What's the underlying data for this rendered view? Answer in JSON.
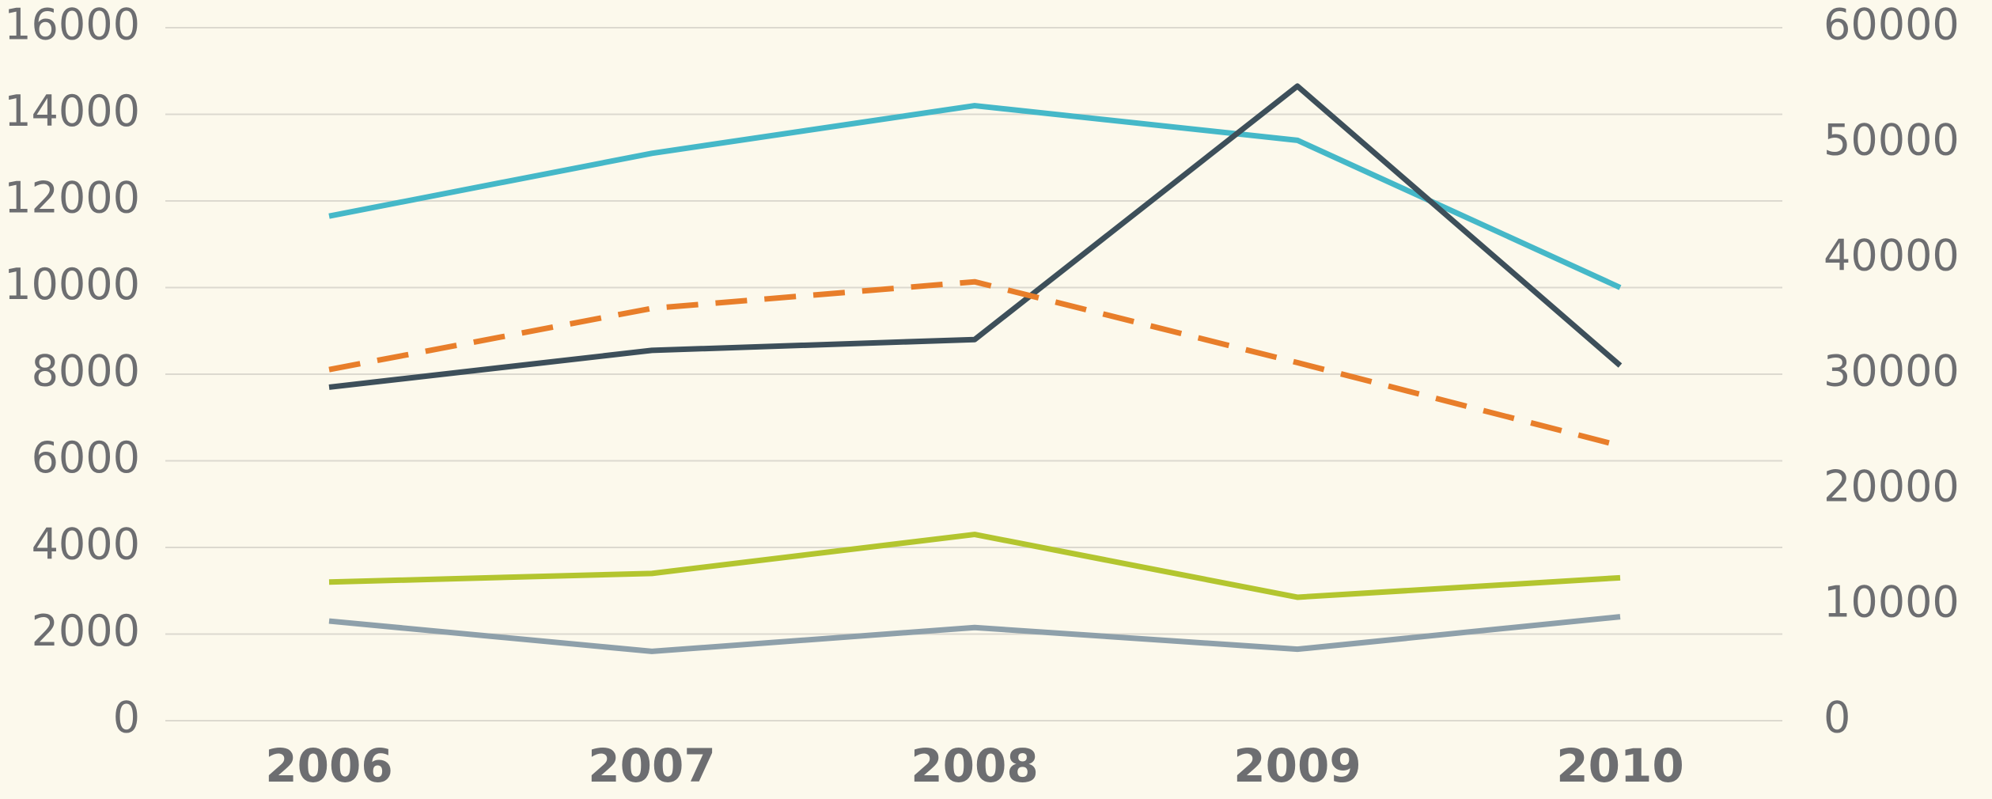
{
  "chart_data": {
    "type": "line",
    "categories": [
      "2006",
      "2007",
      "2008",
      "2009",
      "2010"
    ],
    "series": [
      {
        "color": "#45b8c8",
        "values": [
          11650,
          13100,
          14200,
          13400,
          10000
        ]
      },
      {
        "color": "#3d4f5a",
        "values": [
          7700,
          8550,
          8800,
          14650,
          8200
        ]
      },
      {
        "color": "#e87e2a",
        "axis": "y2",
        "dashed": true,
        "values": [
          30400,
          35700,
          38000,
          31000,
          23800
        ]
      },
      {
        "color": "#b3c52f",
        "values": [
          3200,
          3400,
          4300,
          2850,
          3300
        ]
      },
      {
        "color": "#8ea0aa",
        "values": [
          2300,
          1600,
          2150,
          1650,
          2400
        ]
      }
    ],
    "ylim": [
      0,
      16000
    ],
    "yticks": [
      0,
      2000,
      4000,
      6000,
      8000,
      10000,
      12000,
      14000,
      16000
    ],
    "y2lim": [
      0,
      60000
    ],
    "y2ticks": [
      0,
      10000,
      20000,
      30000,
      40000,
      50000,
      60000
    ],
    "grid": true
  }
}
